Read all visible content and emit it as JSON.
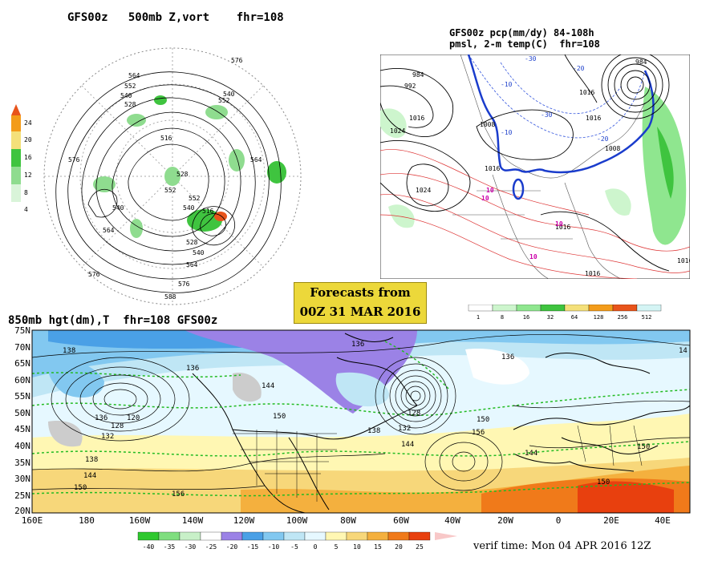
{
  "panels": {
    "z500": {
      "title": "GFS00z   500mb Z,vort    fhr=108",
      "colorbar_ticks": [
        "24",
        "20",
        "16",
        "12",
        "8",
        "4"
      ],
      "colorbar_colors": [
        "#e8541b",
        "#f39c1a",
        "#f4e07a",
        "#3fc43f",
        "#8fdc8f",
        "#d9f4d9"
      ],
      "contour_labels": [
        "576",
        "564",
        "552",
        "540",
        "528",
        "516",
        "540",
        "552",
        "564",
        "576",
        "528",
        "552",
        "540",
        "564",
        "552",
        "540",
        "576",
        "516",
        "528",
        "564",
        "576",
        "588",
        "540"
      ]
    },
    "pcp": {
      "title_line1": "GFS00z pcp(mm/dy) 84-108h",
      "title_line2": "pmsl, 2-m temp(C)  fhr=108",
      "colorbar_ticks": [
        "1",
        "8",
        "16",
        "32",
        "64",
        "128",
        "256",
        "512"
      ],
      "colorbar_colors": [
        "#ffffff",
        "#cdf5cd",
        "#8fe68f",
        "#3fc43f",
        "#f4e07a",
        "#f39c1a",
        "#e8541b",
        "#d4f4f4"
      ],
      "pressure_labels": [
        "984",
        "992",
        "1016",
        "1024",
        "1008",
        "1016",
        "1016",
        "1024",
        "1016",
        "1008",
        "1016",
        "1016",
        "1016",
        "984"
      ],
      "temp_labels": [
        "-30",
        "-10",
        "-20",
        "-30",
        "-20",
        "-10",
        "10",
        "10",
        "10",
        "10"
      ]
    },
    "h850": {
      "title": "850mb hgt(dm),T  fhr=108 GFS00z",
      "lat_labels": [
        "75N",
        "70N",
        "65N",
        "60N",
        "55N",
        "50N",
        "45N",
        "40N",
        "35N",
        "30N",
        "25N",
        "20N"
      ],
      "lon_labels": [
        "160E",
        "180",
        "160W",
        "140W",
        "120W",
        "100W",
        "80W",
        "60W",
        "40W",
        "20W",
        "0",
        "20E",
        "40E"
      ],
      "height_labels": [
        "138",
        "136",
        "120",
        "128",
        "132",
        "138",
        "144",
        "150",
        "156",
        "144",
        "150",
        "136",
        "128",
        "132",
        "144",
        "136",
        "138",
        "150",
        "156",
        "144",
        "150",
        "136",
        "150",
        "14"
      ],
      "colorbar_ticks": [
        "-40",
        "-35",
        "-30",
        "-25",
        "-20",
        "-15",
        "-10",
        "-5",
        "0",
        "5",
        "10",
        "15",
        "20",
        "25"
      ],
      "colorbar_colors": [
        "#2ec82e",
        "#7fde7f",
        "#c8f0c8",
        "#ffffff",
        "#9b82e6",
        "#4aa0e6",
        "#82c8f0",
        "#bfe6f5",
        "#e6f8ff",
        "#fff7b3",
        "#f7d77a",
        "#f4b03e",
        "#f07a1a",
        "#e8400e"
      ]
    }
  },
  "forecast_box": {
    "line1": "Forecasts from",
    "line2": "00Z 31 MAR 2016"
  },
  "verif_time": "verif time: Mon 04 APR 2016 12Z"
}
